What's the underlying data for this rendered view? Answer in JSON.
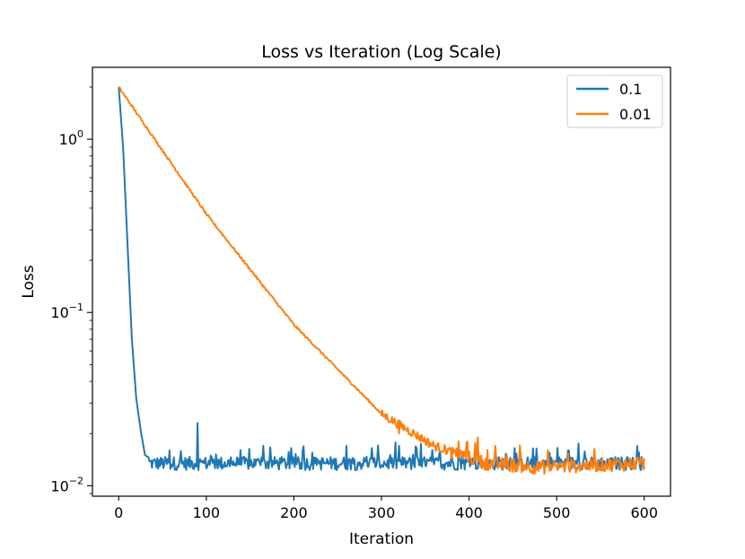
{
  "chart_data": {
    "type": "line",
    "title": "Loss vs Iteration (Log Scale)",
    "xlabel": "Iteration",
    "ylabel": "Loss",
    "xscale": "linear",
    "yscale": "log",
    "xlim": [
      -30,
      630
    ],
    "ylim": [
      0.0087,
      2.6
    ],
    "xticks": [
      0,
      100,
      200,
      300,
      400,
      500,
      600
    ],
    "xtick_labels": [
      "0",
      "100",
      "200",
      "300",
      "400",
      "500",
      "600"
    ],
    "yticks": [
      {
        "value": 1,
        "base": "10",
        "exp": "0"
      },
      {
        "value": 0.1,
        "base": "10",
        "exp": "−1"
      },
      {
        "value": 0.01,
        "base": "10",
        "exp": "−2"
      }
    ],
    "legend_position": "top-right",
    "grid": false,
    "series": [
      {
        "name": "0.1",
        "color": "#1f77b4",
        "description": "rapid decay from ~2.0 to a noisy plateau near 0.013",
        "keypoints": [
          [
            0,
            2.0
          ],
          [
            5,
            0.9
          ],
          [
            10,
            0.25
          ],
          [
            15,
            0.07
          ],
          [
            20,
            0.032
          ],
          [
            25,
            0.021
          ],
          [
            30,
            0.015
          ],
          [
            40,
            0.014
          ]
        ],
        "plateau_mean": 0.0135,
        "spikes": [
          [
            90,
            0.023
          ],
          [
            165,
            0.017
          ],
          [
            260,
            0.017
          ],
          [
            320,
            0.017
          ],
          [
            380,
            0.016
          ]
        ]
      },
      {
        "name": "0.01",
        "color": "#ff7f0e",
        "description": "exponential decay from ~2.0 reaching the ~0.013 floor near iteration 450",
        "keypoints": [
          [
            0,
            2.0
          ],
          [
            100,
            0.37
          ],
          [
            200,
            0.085
          ],
          [
            300,
            0.026
          ],
          [
            360,
            0.017
          ],
          [
            420,
            0.0135
          ],
          [
            480,
            0.0128
          ],
          [
            600,
            0.0135
          ]
        ],
        "spikes": [
          [
            320,
            0.02
          ],
          [
            388,
            0.018
          ],
          [
            410,
            0.019
          ],
          [
            430,
            0.017
          ],
          [
            490,
            0.016
          ]
        ]
      }
    ]
  }
}
